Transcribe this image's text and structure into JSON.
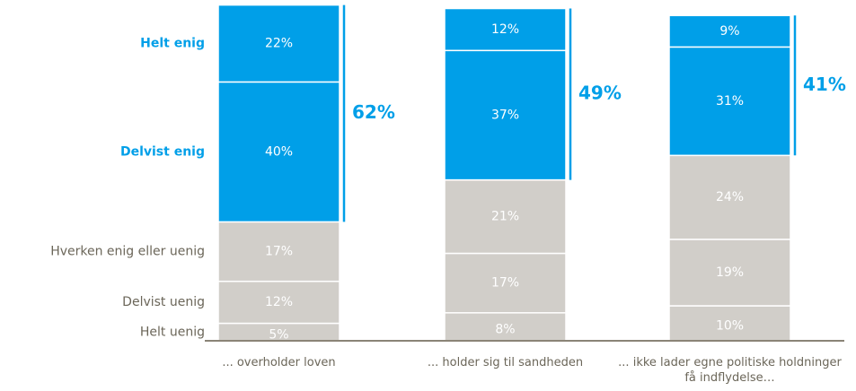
{
  "chart_data": {
    "type": "stacked_bar",
    "categories": [
      "... overholder loven",
      "... holder sig til sandheden",
      "... ikke lader egne politiske holdninger få indflydelse…"
    ],
    "series": [
      {
        "name": "Helt uenig",
        "color": "#d1cec9",
        "label_color": "#6b6659",
        "values": [
          5,
          8,
          10
        ],
        "value_labels": [
          "5%",
          "8%",
          "10%"
        ]
      },
      {
        "name": "Delvist uenig",
        "color": "#d1cec9",
        "label_color": "#6b6659",
        "values": [
          12,
          17,
          19
        ],
        "value_labels": [
          "12%",
          "17%",
          "19%"
        ]
      },
      {
        "name": "Hverken enig eller uenig",
        "color": "#d1cec9",
        "label_color": "#6b6659",
        "values": [
          17,
          21,
          24
        ],
        "value_labels": [
          "17%",
          "21%",
          "24%"
        ]
      },
      {
        "name": "Delvist enig",
        "color": "#009fe8",
        "label_color": "#009fe8",
        "values": [
          40,
          37,
          31
        ],
        "value_labels": [
          "40%",
          "37%",
          "31%"
        ]
      },
      {
        "name": "Helt enig",
        "color": "#009fe8",
        "label_color": "#009fe8",
        "values": [
          22,
          12,
          9
        ],
        "value_labels": [
          "22%",
          "12%",
          "9%"
        ]
      }
    ],
    "totals": {
      "color": "#009fe8",
      "values": [
        62,
        49,
        41
      ],
      "value_labels": [
        "62%",
        "49%",
        "41%"
      ]
    },
    "ylim": [
      0,
      100
    ]
  }
}
